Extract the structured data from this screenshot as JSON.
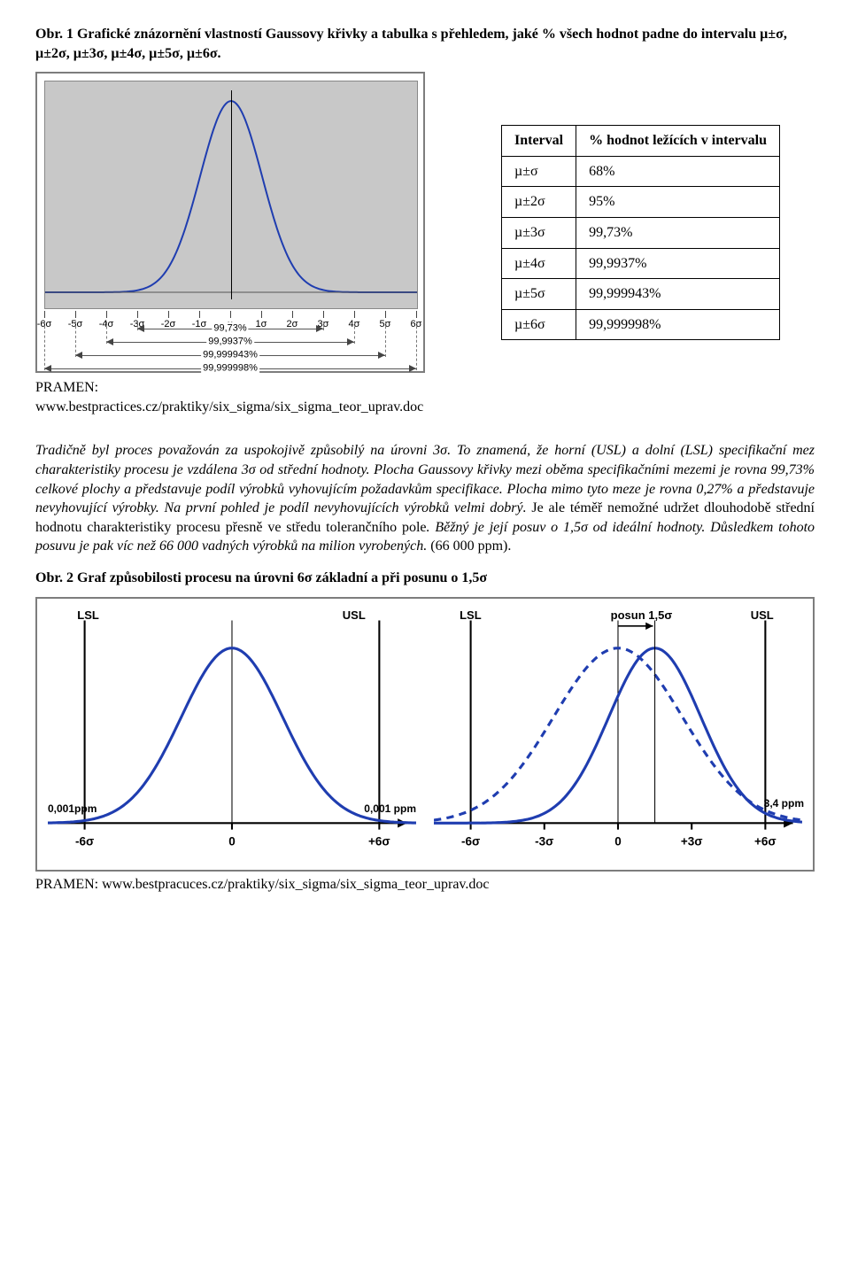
{
  "fig1_caption_bold": "Obr. 1 Grafické znázornění vlastností Gaussovy křivky a tabulka s přehledem, jaké % všech hodnot padne do intervalu  µ±σ, µ±2σ, µ±3σ, µ±4σ, µ±5σ, µ±6σ.",
  "chart1": {
    "background_color": "#c8c8c8",
    "curve_color": "#1f3db0",
    "curve_width": 2,
    "ticks": [
      "-6σ",
      "-5σ",
      "-4σ",
      "-3σ",
      "-2σ",
      "-1σ",
      "µ",
      "1σ",
      "2σ",
      "3σ",
      "4σ",
      "5σ",
      "6σ"
    ],
    "pct_labels": [
      "99,73%",
      "99,9937%",
      "99,999943%",
      "99,999998%"
    ],
    "pct_spans_sigma": [
      3,
      4,
      5,
      6
    ]
  },
  "source1_label": "PRAMEN:",
  "source1_url": "www.bestpractices.cz/praktiky/six_sigma/six_sigma_teor_uprav.doc",
  "table": {
    "header": [
      "Interval",
      "% hodnot ležících v intervalu"
    ],
    "rows": [
      [
        "µ±σ",
        "68%"
      ],
      [
        "µ±2σ",
        "95%"
      ],
      [
        "µ±3σ",
        "99,73%"
      ],
      [
        "µ±4σ",
        "99,9937%"
      ],
      [
        "µ±5σ",
        "99,999943%"
      ],
      [
        "µ±6σ",
        "99,999998%"
      ]
    ]
  },
  "paragraph_italic_parts": [
    "Tradičně byl proces považován za uspokojivě způsobilý na úrovni 3σ. To znamená, že horní (USL) a dolní (LSL) specifikační mez charakteristiky procesu je vzdálena 3σ od střední hodnoty. Plocha Gaussovy křivky mezi oběma specifikačními mezemi je rovna 99,73% celkové plochy a představuje podíl výrobků vyhovujícím požadavkům specifikace. Plocha mimo tyto meze je rovna 0,27% a představuje nevyhovující výrobky. Na první pohled je podíl nevyhovujících výrobků velmi dobrý. ",
    "Je ale téměř nemožné udržet dlouhodobě střední hodnotu charakteristiky procesu přesně ve středu tolerančního pole",
    ". Běžný je její posuv o 1,5σ od ideální hodnoty. Důsledkem tohoto posuvu je pak víc než 66 000 vadných výrobků na milion vyrobených. ",
    "(66 000 ppm)."
  ],
  "fig2_caption": "Obr. 2 Graf způsobilosti procesu na úrovni 6σ základní a při posunu o 1,5σ",
  "fig2": {
    "left": {
      "lsl_label": "LSL",
      "usl_label": "USL",
      "ppm_left": "0,001ppm",
      "ppm_right": "0,001 ppm",
      "xticks": [
        {
          "pos": 0.1,
          "label": "-6σ"
        },
        {
          "pos": 0.5,
          "label": "0"
        },
        {
          "pos": 0.9,
          "label": "+6σ"
        }
      ],
      "curve_color": "#1f3db0",
      "curve_width": 3
    },
    "right": {
      "lsl_label": "LSL",
      "usl_label": "USL",
      "shift_label": "posun 1,5σ",
      "ppm_right": "3,4 ppm",
      "xticks": [
        {
          "pos": 0.1,
          "label": "-6σ"
        },
        {
          "pos": 0.3,
          "label": "-3σ"
        },
        {
          "pos": 0.5,
          "label": "0"
        },
        {
          "pos": 0.7,
          "label": "+3σ"
        },
        {
          "pos": 0.9,
          "label": "+6σ"
        }
      ],
      "curve_color": "#1f3db0",
      "dash_color": "#1f3db0"
    }
  },
  "source2": "PRAMEN: www.bestpracuces.cz/praktiky/six_sigma/six_sigma_teor_uprav.doc"
}
